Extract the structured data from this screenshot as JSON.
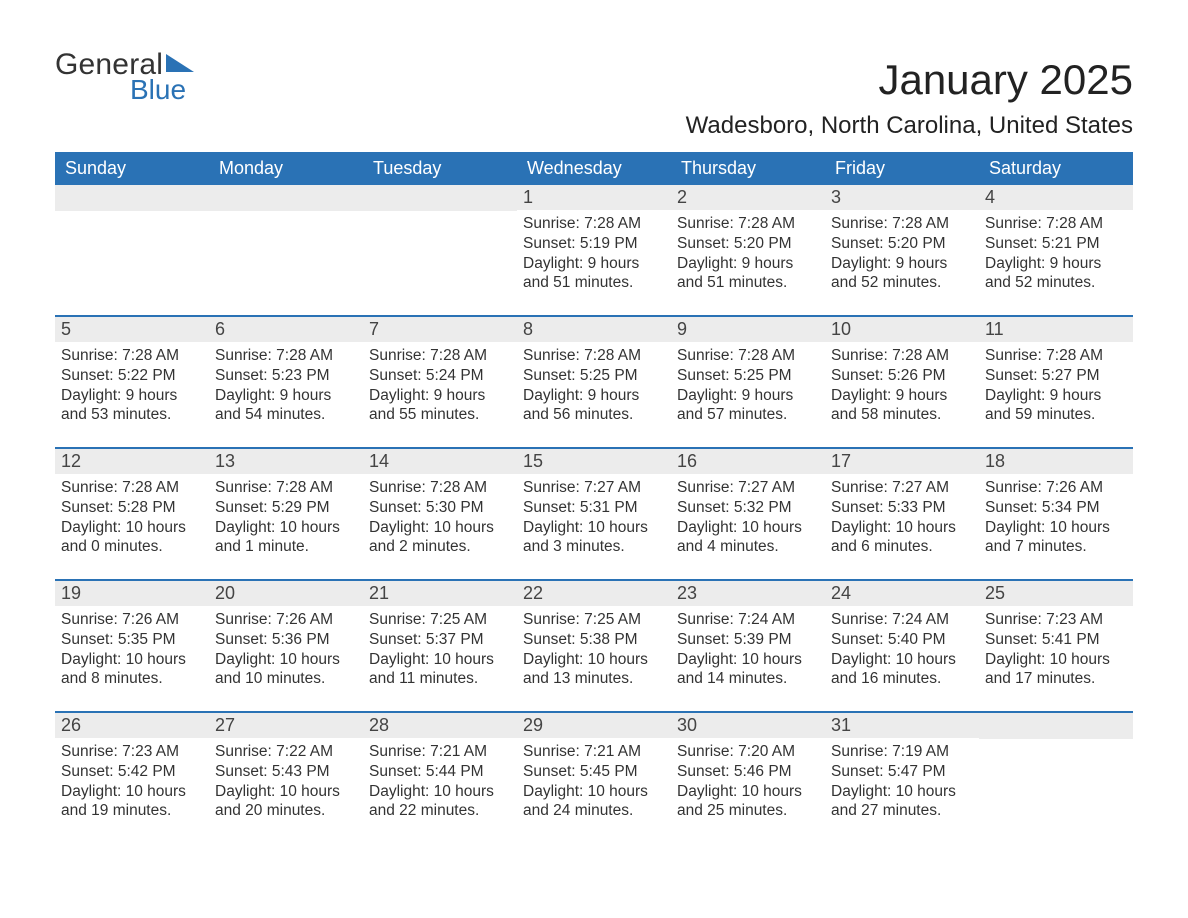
{
  "logo": {
    "word1": "General",
    "word2": "Blue"
  },
  "title": "January 2025",
  "subtitle": "Wadesboro, North Carolina, United States",
  "colors": {
    "header_bg": "#2a72b5",
    "header_text": "#ffffff",
    "daynum_bg": "#ececec",
    "border": "#2a72b5",
    "body_text": "#333333",
    "logo_blue": "#2a72b5"
  },
  "day_headers": [
    "Sunday",
    "Monday",
    "Tuesday",
    "Wednesday",
    "Thursday",
    "Friday",
    "Saturday"
  ],
  "weeks": [
    [
      null,
      null,
      null,
      {
        "num": "1",
        "sunrise": "Sunrise: 7:28 AM",
        "sunset": "Sunset: 5:19 PM",
        "daylight": "Daylight: 9 hours and 51 minutes."
      },
      {
        "num": "2",
        "sunrise": "Sunrise: 7:28 AM",
        "sunset": "Sunset: 5:20 PM",
        "daylight": "Daylight: 9 hours and 51 minutes."
      },
      {
        "num": "3",
        "sunrise": "Sunrise: 7:28 AM",
        "sunset": "Sunset: 5:20 PM",
        "daylight": "Daylight: 9 hours and 52 minutes."
      },
      {
        "num": "4",
        "sunrise": "Sunrise: 7:28 AM",
        "sunset": "Sunset: 5:21 PM",
        "daylight": "Daylight: 9 hours and 52 minutes."
      }
    ],
    [
      {
        "num": "5",
        "sunrise": "Sunrise: 7:28 AM",
        "sunset": "Sunset: 5:22 PM",
        "daylight": "Daylight: 9 hours and 53 minutes."
      },
      {
        "num": "6",
        "sunrise": "Sunrise: 7:28 AM",
        "sunset": "Sunset: 5:23 PM",
        "daylight": "Daylight: 9 hours and 54 minutes."
      },
      {
        "num": "7",
        "sunrise": "Sunrise: 7:28 AM",
        "sunset": "Sunset: 5:24 PM",
        "daylight": "Daylight: 9 hours and 55 minutes."
      },
      {
        "num": "8",
        "sunrise": "Sunrise: 7:28 AM",
        "sunset": "Sunset: 5:25 PM",
        "daylight": "Daylight: 9 hours and 56 minutes."
      },
      {
        "num": "9",
        "sunrise": "Sunrise: 7:28 AM",
        "sunset": "Sunset: 5:25 PM",
        "daylight": "Daylight: 9 hours and 57 minutes."
      },
      {
        "num": "10",
        "sunrise": "Sunrise: 7:28 AM",
        "sunset": "Sunset: 5:26 PM",
        "daylight": "Daylight: 9 hours and 58 minutes."
      },
      {
        "num": "11",
        "sunrise": "Sunrise: 7:28 AM",
        "sunset": "Sunset: 5:27 PM",
        "daylight": "Daylight: 9 hours and 59 minutes."
      }
    ],
    [
      {
        "num": "12",
        "sunrise": "Sunrise: 7:28 AM",
        "sunset": "Sunset: 5:28 PM",
        "daylight": "Daylight: 10 hours and 0 minutes."
      },
      {
        "num": "13",
        "sunrise": "Sunrise: 7:28 AM",
        "sunset": "Sunset: 5:29 PM",
        "daylight": "Daylight: 10 hours and 1 minute."
      },
      {
        "num": "14",
        "sunrise": "Sunrise: 7:28 AM",
        "sunset": "Sunset: 5:30 PM",
        "daylight": "Daylight: 10 hours and 2 minutes."
      },
      {
        "num": "15",
        "sunrise": "Sunrise: 7:27 AM",
        "sunset": "Sunset: 5:31 PM",
        "daylight": "Daylight: 10 hours and 3 minutes."
      },
      {
        "num": "16",
        "sunrise": "Sunrise: 7:27 AM",
        "sunset": "Sunset: 5:32 PM",
        "daylight": "Daylight: 10 hours and 4 minutes."
      },
      {
        "num": "17",
        "sunrise": "Sunrise: 7:27 AM",
        "sunset": "Sunset: 5:33 PM",
        "daylight": "Daylight: 10 hours and 6 minutes."
      },
      {
        "num": "18",
        "sunrise": "Sunrise: 7:26 AM",
        "sunset": "Sunset: 5:34 PM",
        "daylight": "Daylight: 10 hours and 7 minutes."
      }
    ],
    [
      {
        "num": "19",
        "sunrise": "Sunrise: 7:26 AM",
        "sunset": "Sunset: 5:35 PM",
        "daylight": "Daylight: 10 hours and 8 minutes."
      },
      {
        "num": "20",
        "sunrise": "Sunrise: 7:26 AM",
        "sunset": "Sunset: 5:36 PM",
        "daylight": "Daylight: 10 hours and 10 minutes."
      },
      {
        "num": "21",
        "sunrise": "Sunrise: 7:25 AM",
        "sunset": "Sunset: 5:37 PM",
        "daylight": "Daylight: 10 hours and 11 minutes."
      },
      {
        "num": "22",
        "sunrise": "Sunrise: 7:25 AM",
        "sunset": "Sunset: 5:38 PM",
        "daylight": "Daylight: 10 hours and 13 minutes."
      },
      {
        "num": "23",
        "sunrise": "Sunrise: 7:24 AM",
        "sunset": "Sunset: 5:39 PM",
        "daylight": "Daylight: 10 hours and 14 minutes."
      },
      {
        "num": "24",
        "sunrise": "Sunrise: 7:24 AM",
        "sunset": "Sunset: 5:40 PM",
        "daylight": "Daylight: 10 hours and 16 minutes."
      },
      {
        "num": "25",
        "sunrise": "Sunrise: 7:23 AM",
        "sunset": "Sunset: 5:41 PM",
        "daylight": "Daylight: 10 hours and 17 minutes."
      }
    ],
    [
      {
        "num": "26",
        "sunrise": "Sunrise: 7:23 AM",
        "sunset": "Sunset: 5:42 PM",
        "daylight": "Daylight: 10 hours and 19 minutes."
      },
      {
        "num": "27",
        "sunrise": "Sunrise: 7:22 AM",
        "sunset": "Sunset: 5:43 PM",
        "daylight": "Daylight: 10 hours and 20 minutes."
      },
      {
        "num": "28",
        "sunrise": "Sunrise: 7:21 AM",
        "sunset": "Sunset: 5:44 PM",
        "daylight": "Daylight: 10 hours and 22 minutes."
      },
      {
        "num": "29",
        "sunrise": "Sunrise: 7:21 AM",
        "sunset": "Sunset: 5:45 PM",
        "daylight": "Daylight: 10 hours and 24 minutes."
      },
      {
        "num": "30",
        "sunrise": "Sunrise: 7:20 AM",
        "sunset": "Sunset: 5:46 PM",
        "daylight": "Daylight: 10 hours and 25 minutes."
      },
      {
        "num": "31",
        "sunrise": "Sunrise: 7:19 AM",
        "sunset": "Sunset: 5:47 PM",
        "daylight": "Daylight: 10 hours and 27 minutes."
      },
      null
    ]
  ]
}
